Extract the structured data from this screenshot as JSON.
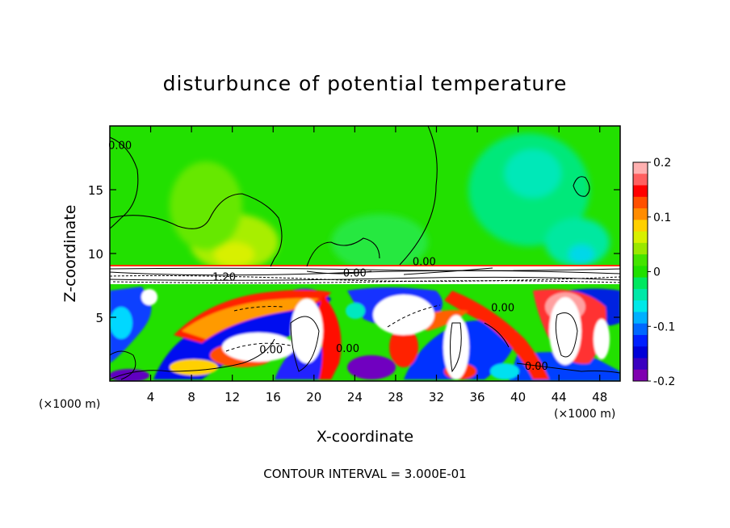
{
  "chart_data": {
    "type": "heatmap",
    "title": "disturbunce of potential temperature",
    "xlabel": "X-coordinate",
    "ylabel": "Z-coordinate",
    "x_unit": "(×1000 m)",
    "z_unit": "(×1000 m)",
    "footer": "CONTOUR INTERVAL = 3.000E-01",
    "xlim": [
      0,
      50
    ],
    "ylim": [
      0,
      20
    ],
    "x_ticks": [
      4,
      8,
      12,
      16,
      20,
      24,
      28,
      32,
      36,
      40,
      44,
      48
    ],
    "y_ticks": [
      5,
      10,
      15
    ],
    "colorbar": {
      "range": [
        -0.2,
        0.2
      ],
      "ticks": [
        "0.2",
        "0.1",
        "0",
        "-0.1",
        "-0.2"
      ],
      "tick_values": [
        0.2,
        0.1,
        0,
        -0.1,
        -0.2
      ]
    },
    "contour_labels": [
      {
        "text": "0.00",
        "x": 1.0,
        "z": 18.5
      },
      {
        "text": "0.00",
        "x": 30.8,
        "z": 9.4
      },
      {
        "text": "1.20",
        "x": 11.2,
        "z": 8.2
      },
      {
        "text": "0.00",
        "x": 24.0,
        "z": 8.5
      },
      {
        "text": "0.00",
        "x": 38.5,
        "z": 5.8
      },
      {
        "text": "0.00",
        "x": 15.8,
        "z": 2.5
      },
      {
        "text": "0.00",
        "x": 23.3,
        "z": 2.6
      },
      {
        "text": "0.00",
        "x": 41.8,
        "z": 1.2
      }
    ],
    "field_regions": {
      "upper_layer_z": [
        9.2,
        20
      ],
      "upper_layer_value_range": [
        -0.08,
        0.06
      ],
      "inversion_z": [
        7.7,
        9.2
      ],
      "lower_layer_z": [
        0,
        7.7
      ],
      "lower_layer_value_range": [
        -0.2,
        0.2
      ]
    }
  }
}
